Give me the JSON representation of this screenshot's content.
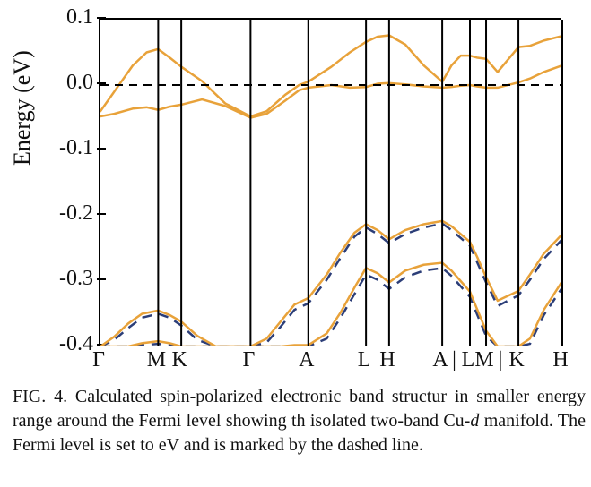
{
  "figure": {
    "ylabel": "Energy (eV)",
    "ylim": [
      -0.4,
      0.1
    ],
    "yticks": [
      -0.4,
      -0.3,
      -0.2,
      -0.1,
      0.0,
      0.1
    ],
    "ytick_labels": [
      "-0.4",
      "-0.3",
      "-0.2",
      "-0.1",
      "0.0",
      "0.1"
    ],
    "x_total": 10.0,
    "x_segments": [
      {
        "label": "Γ",
        "x": 0.0
      },
      {
        "label": "M",
        "x": 1.25
      },
      {
        "label": "K",
        "x": 1.75
      },
      {
        "label": "Γ",
        "x": 3.25
      },
      {
        "label": "A",
        "x": 4.5
      },
      {
        "label": "L",
        "x": 5.75
      },
      {
        "label": "H",
        "x": 6.25
      },
      {
        "label": "A",
        "x": 7.4
      },
      {
        "label": "|",
        "x": 7.7
      },
      {
        "label": "L",
        "x": 8.0
      },
      {
        "label": "M",
        "x": 8.35
      },
      {
        "label": "|",
        "x": 8.7
      },
      {
        "label": "K",
        "x": 9.05
      },
      {
        "label": "H",
        "x": 10.0
      }
    ],
    "x_verticals": [
      1.25,
      1.75,
      3.25,
      4.5,
      5.75,
      6.25,
      7.4,
      8.0,
      8.35,
      9.05
    ],
    "fermi_y": 0.0,
    "colors": {
      "spin_up": "#e8a23a",
      "spin_down_dash": "#2c3e78",
      "axis": "#000000",
      "dash_fermi": "#000000",
      "background": "#ffffff"
    },
    "line_widths": {
      "band": 2.5,
      "dash": 2.5,
      "vline": 2,
      "fermi": 2
    },
    "bands_solid": [
      {
        "name": "upper1",
        "points": [
          [
            0.0,
            -0.04
          ],
          [
            0.3,
            -0.01
          ],
          [
            0.7,
            0.03
          ],
          [
            1.0,
            0.05
          ],
          [
            1.25,
            0.055
          ],
          [
            1.5,
            0.042
          ],
          [
            1.75,
            0.028
          ],
          [
            2.2,
            0.006
          ],
          [
            2.7,
            -0.028
          ],
          [
            3.25,
            -0.048
          ],
          [
            3.6,
            -0.04
          ],
          [
            4.0,
            -0.015
          ],
          [
            4.3,
            0.0
          ],
          [
            4.5,
            0.005
          ],
          [
            5.0,
            0.028
          ],
          [
            5.4,
            0.05
          ],
          [
            5.75,
            0.066
          ],
          [
            6.0,
            0.074
          ],
          [
            6.25,
            0.076
          ],
          [
            6.6,
            0.062
          ],
          [
            7.0,
            0.03
          ],
          [
            7.4,
            0.005
          ],
          [
            7.6,
            0.03
          ],
          [
            7.8,
            0.045
          ],
          [
            8.0,
            0.045
          ],
          [
            8.15,
            0.042
          ],
          [
            8.35,
            0.04
          ],
          [
            8.6,
            0.02
          ],
          [
            9.05,
            0.058
          ],
          [
            9.3,
            0.06
          ],
          [
            9.6,
            0.068
          ],
          [
            10.0,
            0.075
          ]
        ]
      },
      {
        "name": "upper2",
        "points": [
          [
            0.0,
            -0.048
          ],
          [
            0.3,
            -0.044
          ],
          [
            0.7,
            -0.036
          ],
          [
            1.0,
            -0.034
          ],
          [
            1.25,
            -0.038
          ],
          [
            1.5,
            -0.033
          ],
          [
            1.75,
            -0.03
          ],
          [
            2.2,
            -0.022
          ],
          [
            2.7,
            -0.032
          ],
          [
            3.25,
            -0.05
          ],
          [
            3.6,
            -0.044
          ],
          [
            4.0,
            -0.024
          ],
          [
            4.3,
            -0.008
          ],
          [
            4.5,
            -0.004
          ],
          [
            5.0,
            0.0
          ],
          [
            5.4,
            -0.004
          ],
          [
            5.75,
            -0.003
          ],
          [
            6.0,
            0.002
          ],
          [
            6.25,
            0.003
          ],
          [
            6.6,
            0.001
          ],
          [
            7.0,
            -0.002
          ],
          [
            7.4,
            -0.004
          ],
          [
            7.6,
            -0.003
          ],
          [
            7.8,
            -0.001
          ],
          [
            8.0,
            0.0
          ],
          [
            8.15,
            -0.002
          ],
          [
            8.35,
            -0.004
          ],
          [
            8.6,
            -0.004
          ],
          [
            9.05,
            0.004
          ],
          [
            9.3,
            0.01
          ],
          [
            9.6,
            0.02
          ],
          [
            10.0,
            0.03
          ]
        ]
      },
      {
        "name": "lower1",
        "points": [
          [
            0.0,
            -0.4
          ],
          [
            0.3,
            -0.385
          ],
          [
            0.6,
            -0.365
          ],
          [
            0.9,
            -0.35
          ],
          [
            1.25,
            -0.345
          ],
          [
            1.5,
            -0.352
          ],
          [
            1.75,
            -0.362
          ],
          [
            2.1,
            -0.384
          ],
          [
            2.5,
            -0.4
          ],
          [
            3.25,
            -0.4
          ],
          [
            3.6,
            -0.388
          ],
          [
            3.9,
            -0.362
          ],
          [
            4.2,
            -0.336
          ],
          [
            4.5,
            -0.326
          ],
          [
            4.9,
            -0.29
          ],
          [
            5.2,
            -0.256
          ],
          [
            5.5,
            -0.226
          ],
          [
            5.75,
            -0.213
          ],
          [
            6.0,
            -0.222
          ],
          [
            6.25,
            -0.236
          ],
          [
            6.6,
            -0.222
          ],
          [
            7.0,
            -0.213
          ],
          [
            7.4,
            -0.208
          ],
          [
            7.6,
            -0.216
          ],
          [
            7.8,
            -0.228
          ],
          [
            8.0,
            -0.24
          ],
          [
            8.15,
            -0.262
          ],
          [
            8.35,
            -0.294
          ],
          [
            8.6,
            -0.33
          ],
          [
            9.05,
            -0.315
          ],
          [
            9.3,
            -0.29
          ],
          [
            9.6,
            -0.258
          ],
          [
            10.0,
            -0.228
          ]
        ]
      },
      {
        "name": "lower2",
        "points": [
          [
            0.0,
            -0.4
          ],
          [
            0.3,
            -0.4
          ],
          [
            0.6,
            -0.4
          ],
          [
            0.9,
            -0.395
          ],
          [
            1.25,
            -0.392
          ],
          [
            1.5,
            -0.395
          ],
          [
            1.75,
            -0.4
          ],
          [
            2.1,
            -0.4
          ],
          [
            2.5,
            -0.4
          ],
          [
            3.25,
            -0.4
          ],
          [
            3.6,
            -0.4
          ],
          [
            3.9,
            -0.4
          ],
          [
            4.2,
            -0.398
          ],
          [
            4.5,
            -0.398
          ],
          [
            4.9,
            -0.38
          ],
          [
            5.2,
            -0.348
          ],
          [
            5.5,
            -0.31
          ],
          [
            5.75,
            -0.28
          ],
          [
            6.0,
            -0.288
          ],
          [
            6.25,
            -0.302
          ],
          [
            6.6,
            -0.284
          ],
          [
            7.0,
            -0.275
          ],
          [
            7.4,
            -0.272
          ],
          [
            7.6,
            -0.284
          ],
          [
            7.8,
            -0.3
          ],
          [
            8.0,
            -0.316
          ],
          [
            8.15,
            -0.342
          ],
          [
            8.35,
            -0.376
          ],
          [
            8.6,
            -0.4
          ],
          [
            9.05,
            -0.4
          ],
          [
            9.3,
            -0.388
          ],
          [
            9.6,
            -0.344
          ],
          [
            10.0,
            -0.3
          ]
        ]
      }
    ],
    "bands_dashed": [
      {
        "name": "dash1",
        "points": [
          [
            0.0,
            -0.4
          ],
          [
            0.3,
            -0.39
          ],
          [
            0.6,
            -0.372
          ],
          [
            0.9,
            -0.356
          ],
          [
            1.25,
            -0.35
          ],
          [
            1.5,
            -0.356
          ],
          [
            1.75,
            -0.368
          ],
          [
            2.1,
            -0.39
          ],
          [
            2.5,
            -0.4
          ],
          [
            3.25,
            -0.4
          ],
          [
            3.6,
            -0.394
          ],
          [
            3.9,
            -0.37
          ],
          [
            4.2,
            -0.344
          ],
          [
            4.5,
            -0.334
          ],
          [
            4.9,
            -0.298
          ],
          [
            5.2,
            -0.264
          ],
          [
            5.5,
            -0.232
          ],
          [
            5.75,
            -0.218
          ],
          [
            6.0,
            -0.228
          ],
          [
            6.25,
            -0.242
          ],
          [
            6.6,
            -0.228
          ],
          [
            7.0,
            -0.218
          ],
          [
            7.4,
            -0.212
          ],
          [
            7.6,
            -0.222
          ],
          [
            7.8,
            -0.234
          ],
          [
            8.0,
            -0.246
          ],
          [
            8.15,
            -0.27
          ],
          [
            8.35,
            -0.302
          ],
          [
            8.6,
            -0.338
          ],
          [
            9.05,
            -0.322
          ],
          [
            9.3,
            -0.298
          ],
          [
            9.6,
            -0.266
          ],
          [
            10.0,
            -0.236
          ]
        ]
      },
      {
        "name": "dash2",
        "points": [
          [
            0.0,
            -0.4
          ],
          [
            0.3,
            -0.4
          ],
          [
            0.6,
            -0.4
          ],
          [
            0.9,
            -0.398
          ],
          [
            1.25,
            -0.396
          ],
          [
            1.5,
            -0.398
          ],
          [
            1.75,
            -0.4
          ],
          [
            2.1,
            -0.4
          ],
          [
            2.5,
            -0.4
          ],
          [
            3.25,
            -0.4
          ],
          [
            3.6,
            -0.4
          ],
          [
            3.9,
            -0.4
          ],
          [
            4.2,
            -0.4
          ],
          [
            4.5,
            -0.4
          ],
          [
            4.9,
            -0.388
          ],
          [
            5.2,
            -0.356
          ],
          [
            5.5,
            -0.32
          ],
          [
            5.75,
            -0.29
          ],
          [
            6.0,
            -0.298
          ],
          [
            6.25,
            -0.312
          ],
          [
            6.6,
            -0.294
          ],
          [
            7.0,
            -0.284
          ],
          [
            7.4,
            -0.28
          ],
          [
            7.6,
            -0.292
          ],
          [
            7.8,
            -0.308
          ],
          [
            8.0,
            -0.324
          ],
          [
            8.15,
            -0.35
          ],
          [
            8.35,
            -0.384
          ],
          [
            8.6,
            -0.4
          ],
          [
            9.05,
            -0.4
          ],
          [
            9.3,
            -0.396
          ],
          [
            9.6,
            -0.352
          ],
          [
            10.0,
            -0.31
          ]
        ]
      }
    ]
  },
  "caption": {
    "prefix": "FIG. 4.  ",
    "text1": "Calculated spin-polarized electronic band structur in smaller energy range around the Fermi level showing th isolated two-band Cu-",
    "ital": "d",
    "text2": " manifold. The Fermi level is set to  eV and is marked by the dashed line."
  }
}
